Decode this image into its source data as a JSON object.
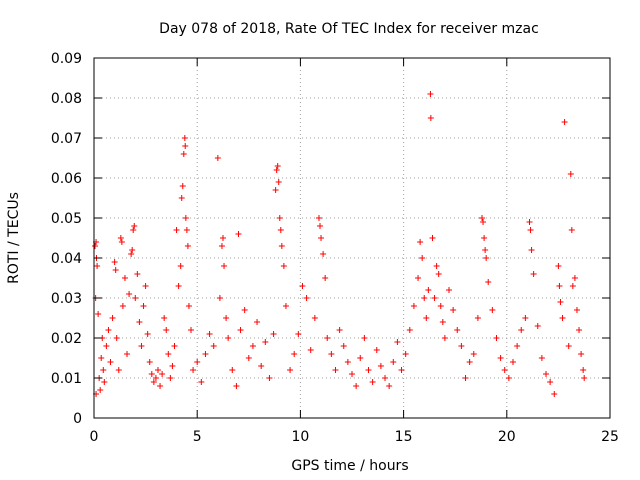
{
  "chart_data": {
    "type": "scatter",
    "title": "Day 078 of 2018, Rate Of TEC Index for receiver mzac",
    "xlabel": "GPS time / hours",
    "ylabel": "ROTI / TECUs",
    "xlim": [
      0,
      25
    ],
    "ylim": [
      0,
      0.09
    ],
    "xticks": [
      0,
      5,
      10,
      15,
      20,
      25
    ],
    "xtick_labels": [
      "0",
      "5",
      "10",
      "15",
      "20",
      "25"
    ],
    "yticks": [
      0,
      0.01,
      0.02,
      0.03,
      0.04,
      0.05,
      0.06,
      0.07,
      0.08,
      0.09
    ],
    "ytick_labels": [
      "0",
      "0.01",
      "0.02",
      "0.03",
      "0.04",
      "0.05",
      "0.06",
      "0.07",
      "0.08",
      "0.09"
    ],
    "grid": true,
    "marker": "plus",
    "color": "#ff0000",
    "series": [
      {
        "name": "ROTI",
        "points": [
          [
            0.05,
            0.043
          ],
          [
            0.1,
            0.044
          ],
          [
            0.12,
            0.04
          ],
          [
            0.15,
            0.038
          ],
          [
            0.08,
            0.03
          ],
          [
            0.2,
            0.026
          ],
          [
            0.25,
            0.01
          ],
          [
            0.1,
            0.006
          ],
          [
            0.3,
            0.007
          ],
          [
            0.35,
            0.015
          ],
          [
            0.4,
            0.02
          ],
          [
            0.45,
            0.012
          ],
          [
            0.5,
            0.009
          ],
          [
            0.6,
            0.018
          ],
          [
            0.7,
            0.022
          ],
          [
            0.8,
            0.014
          ],
          [
            0.9,
            0.025
          ],
          [
            1.0,
            0.039
          ],
          [
            1.05,
            0.037
          ],
          [
            1.1,
            0.02
          ],
          [
            1.2,
            0.012
          ],
          [
            1.3,
            0.045
          ],
          [
            1.35,
            0.044
          ],
          [
            1.4,
            0.028
          ],
          [
            1.5,
            0.035
          ],
          [
            1.6,
            0.016
          ],
          [
            1.7,
            0.031
          ],
          [
            1.8,
            0.041
          ],
          [
            1.85,
            0.042
          ],
          [
            1.9,
            0.047
          ],
          [
            1.95,
            0.048
          ],
          [
            2.0,
            0.03
          ],
          [
            2.1,
            0.036
          ],
          [
            2.2,
            0.024
          ],
          [
            2.3,
            0.018
          ],
          [
            2.4,
            0.028
          ],
          [
            2.5,
            0.033
          ],
          [
            2.6,
            0.021
          ],
          [
            2.7,
            0.014
          ],
          [
            2.8,
            0.011
          ],
          [
            2.9,
            0.009
          ],
          [
            3.0,
            0.01
          ],
          [
            3.1,
            0.012
          ],
          [
            3.2,
            0.008
          ],
          [
            3.3,
            0.011
          ],
          [
            3.4,
            0.025
          ],
          [
            3.5,
            0.022
          ],
          [
            3.6,
            0.016
          ],
          [
            3.7,
            0.01
          ],
          [
            3.8,
            0.013
          ],
          [
            3.9,
            0.018
          ],
          [
            4.0,
            0.047
          ],
          [
            4.1,
            0.033
          ],
          [
            4.2,
            0.038
          ],
          [
            4.25,
            0.055
          ],
          [
            4.3,
            0.058
          ],
          [
            4.35,
            0.066
          ],
          [
            4.4,
            0.07
          ],
          [
            4.42,
            0.068
          ],
          [
            4.45,
            0.05
          ],
          [
            4.5,
            0.047
          ],
          [
            4.55,
            0.043
          ],
          [
            4.6,
            0.028
          ],
          [
            4.7,
            0.022
          ],
          [
            4.8,
            0.012
          ],
          [
            5.0,
            0.014
          ],
          [
            5.2,
            0.009
          ],
          [
            5.4,
            0.016
          ],
          [
            5.6,
            0.021
          ],
          [
            5.8,
            0.018
          ],
          [
            6.0,
            0.065
          ],
          [
            6.1,
            0.03
          ],
          [
            6.2,
            0.043
          ],
          [
            6.25,
            0.045
          ],
          [
            6.3,
            0.038
          ],
          [
            6.4,
            0.025
          ],
          [
            6.5,
            0.02
          ],
          [
            6.7,
            0.012
          ],
          [
            6.9,
            0.008
          ],
          [
            7.0,
            0.046
          ],
          [
            7.1,
            0.022
          ],
          [
            7.3,
            0.027
          ],
          [
            7.5,
            0.015
          ],
          [
            7.7,
            0.018
          ],
          [
            7.9,
            0.024
          ],
          [
            8.1,
            0.013
          ],
          [
            8.3,
            0.019
          ],
          [
            8.5,
            0.01
          ],
          [
            8.7,
            0.021
          ],
          [
            8.8,
            0.057
          ],
          [
            8.85,
            0.062
          ],
          [
            8.9,
            0.063
          ],
          [
            8.95,
            0.059
          ],
          [
            9.0,
            0.05
          ],
          [
            9.05,
            0.047
          ],
          [
            9.1,
            0.043
          ],
          [
            9.2,
            0.038
          ],
          [
            9.3,
            0.028
          ],
          [
            9.5,
            0.012
          ],
          [
            9.7,
            0.016
          ],
          [
            9.9,
            0.021
          ],
          [
            10.1,
            0.033
          ],
          [
            10.3,
            0.03
          ],
          [
            10.5,
            0.017
          ],
          [
            10.7,
            0.025
          ],
          [
            10.9,
            0.05
          ],
          [
            10.95,
            0.048
          ],
          [
            11.0,
            0.045
          ],
          [
            11.1,
            0.041
          ],
          [
            11.2,
            0.035
          ],
          [
            11.3,
            0.02
          ],
          [
            11.5,
            0.016
          ],
          [
            11.7,
            0.012
          ],
          [
            11.9,
            0.022
          ],
          [
            12.1,
            0.018
          ],
          [
            12.3,
            0.014
          ],
          [
            12.5,
            0.011
          ],
          [
            12.7,
            0.008
          ],
          [
            12.9,
            0.015
          ],
          [
            13.1,
            0.02
          ],
          [
            13.3,
            0.012
          ],
          [
            13.5,
            0.009
          ],
          [
            13.7,
            0.017
          ],
          [
            13.9,
            0.013
          ],
          [
            14.1,
            0.01
          ],
          [
            14.3,
            0.008
          ],
          [
            14.5,
            0.014
          ],
          [
            14.7,
            0.019
          ],
          [
            14.9,
            0.012
          ],
          [
            15.1,
            0.016
          ],
          [
            15.3,
            0.022
          ],
          [
            15.5,
            0.028
          ],
          [
            15.7,
            0.035
          ],
          [
            15.8,
            0.044
          ],
          [
            15.9,
            0.04
          ],
          [
            16.0,
            0.03
          ],
          [
            16.1,
            0.025
          ],
          [
            16.2,
            0.032
          ],
          [
            16.3,
            0.081
          ],
          [
            16.32,
            0.075
          ],
          [
            16.4,
            0.045
          ],
          [
            16.5,
            0.03
          ],
          [
            16.6,
            0.038
          ],
          [
            16.7,
            0.036
          ],
          [
            16.8,
            0.028
          ],
          [
            16.9,
            0.024
          ],
          [
            17.0,
            0.02
          ],
          [
            17.2,
            0.032
          ],
          [
            17.4,
            0.027
          ],
          [
            17.6,
            0.022
          ],
          [
            17.8,
            0.018
          ],
          [
            18.0,
            0.01
          ],
          [
            18.2,
            0.014
          ],
          [
            18.4,
            0.016
          ],
          [
            18.6,
            0.025
          ],
          [
            18.8,
            0.05
          ],
          [
            18.85,
            0.049
          ],
          [
            18.9,
            0.045
          ],
          [
            18.95,
            0.042
          ],
          [
            19.0,
            0.04
          ],
          [
            19.1,
            0.034
          ],
          [
            19.3,
            0.027
          ],
          [
            19.5,
            0.02
          ],
          [
            19.7,
            0.015
          ],
          [
            19.9,
            0.012
          ],
          [
            20.1,
            0.01
          ],
          [
            20.3,
            0.014
          ],
          [
            20.5,
            0.018
          ],
          [
            20.7,
            0.022
          ],
          [
            20.9,
            0.025
          ],
          [
            21.1,
            0.049
          ],
          [
            21.15,
            0.047
          ],
          [
            21.2,
            0.042
          ],
          [
            21.3,
            0.036
          ],
          [
            21.5,
            0.023
          ],
          [
            21.7,
            0.015
          ],
          [
            21.9,
            0.011
          ],
          [
            22.1,
            0.009
          ],
          [
            22.3,
            0.006
          ],
          [
            22.5,
            0.038
          ],
          [
            22.55,
            0.033
          ],
          [
            22.6,
            0.029
          ],
          [
            22.7,
            0.025
          ],
          [
            22.8,
            0.074
          ],
          [
            23.0,
            0.018
          ],
          [
            23.1,
            0.061
          ],
          [
            23.15,
            0.047
          ],
          [
            23.2,
            0.033
          ],
          [
            23.3,
            0.035
          ],
          [
            23.4,
            0.027
          ],
          [
            23.5,
            0.022
          ],
          [
            23.6,
            0.016
          ],
          [
            23.7,
            0.012
          ],
          [
            23.75,
            0.01
          ]
        ]
      }
    ]
  }
}
